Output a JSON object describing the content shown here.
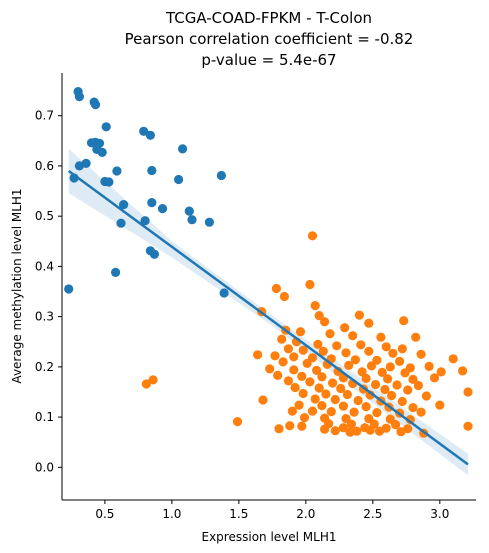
{
  "chart_data": {
    "type": "scatter",
    "title_lines": [
      "TCGA-COAD-FPKM - T-Colon",
      "Pearson correlation coefficient = -0.82",
      "p-value = 5.4e-67"
    ],
    "xlabel": "Expression level MLH1",
    "ylabel": "Average methylation level MLH1",
    "xlim": [
      0.18,
      3.27
    ],
    "ylim": [
      -0.065,
      0.785
    ],
    "xticks": [
      0.5,
      1.0,
      1.5,
      2.0,
      2.5,
      3.0
    ],
    "xtick_labels": [
      "0.5",
      "1.0",
      "1.5",
      "2.0",
      "2.5",
      "3.0"
    ],
    "yticks": [
      0.0,
      0.1,
      0.2,
      0.3,
      0.4,
      0.5,
      0.6,
      0.7
    ],
    "ytick_labels": [
      "0.0",
      "0.1",
      "0.2",
      "0.3",
      "0.4",
      "0.5",
      "0.6",
      "0.7"
    ],
    "grid": false,
    "series": [
      {
        "color": "#1f77b4",
        "points": [
          [
            0.3,
            0.748
          ],
          [
            0.31,
            0.738
          ],
          [
            0.42,
            0.727
          ],
          [
            0.43,
            0.722
          ],
          [
            0.51,
            0.678
          ],
          [
            0.4,
            0.646
          ],
          [
            0.43,
            0.647
          ],
          [
            0.46,
            0.645
          ],
          [
            0.44,
            0.633
          ],
          [
            0.48,
            0.627
          ],
          [
            0.31,
            0.6
          ],
          [
            0.36,
            0.605
          ],
          [
            0.27,
            0.576
          ],
          [
            0.5,
            0.569
          ],
          [
            0.53,
            0.568
          ],
          [
            0.59,
            0.59
          ],
          [
            0.79,
            0.669
          ],
          [
            0.84,
            0.661
          ],
          [
            0.85,
            0.591
          ],
          [
            1.08,
            0.634
          ],
          [
            1.05,
            0.573
          ],
          [
            1.37,
            0.581
          ],
          [
            0.64,
            0.523
          ],
          [
            0.85,
            0.527
          ],
          [
            0.93,
            0.515
          ],
          [
            0.8,
            0.491
          ],
          [
            0.62,
            0.486
          ],
          [
            1.13,
            0.51
          ],
          [
            1.15,
            0.493
          ],
          [
            1.28,
            0.488
          ],
          [
            0.84,
            0.431
          ],
          [
            0.87,
            0.424
          ],
          [
            0.58,
            0.388
          ],
          [
            0.23,
            0.355
          ],
          [
            1.39,
            0.347
          ]
        ]
      },
      {
        "color": "#ff7f0e",
        "points": [
          [
            2.05,
            0.461
          ],
          [
            2.03,
            0.364
          ],
          [
            1.78,
            0.356
          ],
          [
            1.84,
            0.34
          ],
          [
            2.07,
            0.322
          ],
          [
            1.67,
            0.31
          ],
          [
            2.1,
            0.302
          ],
          [
            2.4,
            0.303
          ],
          [
            2.14,
            0.29
          ],
          [
            2.29,
            0.278
          ],
          [
            2.47,
            0.287
          ],
          [
            2.73,
            0.292
          ],
          [
            1.85,
            0.273
          ],
          [
            1.96,
            0.27
          ],
          [
            2.18,
            0.266
          ],
          [
            2.35,
            0.262
          ],
          [
            2.56,
            0.259
          ],
          [
            2.82,
            0.259
          ],
          [
            1.82,
            0.255
          ],
          [
            1.93,
            0.25
          ],
          [
            2.09,
            0.245
          ],
          [
            2.23,
            0.242
          ],
          [
            2.41,
            0.244
          ],
          [
            2.6,
            0.24
          ],
          [
            2.72,
            0.236
          ],
          [
            1.87,
            0.236
          ],
          [
            1.98,
            0.233
          ],
          [
            2.13,
            0.231
          ],
          [
            2.3,
            0.228
          ],
          [
            2.47,
            0.231
          ],
          [
            2.65,
            0.227
          ],
          [
            2.86,
            0.225
          ],
          [
            1.64,
            0.224
          ],
          [
            1.77,
            0.222
          ],
          [
            1.91,
            0.22
          ],
          [
            2.05,
            0.218
          ],
          [
            2.19,
            0.216
          ],
          [
            2.37,
            0.214
          ],
          [
            2.53,
            0.213
          ],
          [
            2.7,
            0.211
          ],
          [
            3.1,
            0.216
          ],
          [
            1.83,
            0.21
          ],
          [
            2.01,
            0.207
          ],
          [
            2.16,
            0.205
          ],
          [
            2.32,
            0.203
          ],
          [
            2.49,
            0.202
          ],
          [
            2.63,
            0.2
          ],
          [
            2.78,
            0.198
          ],
          [
            2.92,
            0.201
          ],
          [
            1.73,
            0.196
          ],
          [
            1.91,
            0.194
          ],
          [
            2.08,
            0.193
          ],
          [
            2.24,
            0.191
          ],
          [
            2.42,
            0.19
          ],
          [
            2.57,
            0.189
          ],
          [
            2.74,
            0.188
          ],
          [
            3.01,
            0.19
          ],
          [
            3.17,
            0.192
          ],
          [
            1.79,
            0.183
          ],
          [
            1.97,
            0.181
          ],
          [
            2.12,
            0.18
          ],
          [
            2.28,
            0.178
          ],
          [
            2.45,
            0.177
          ],
          [
            2.61,
            0.176
          ],
          [
            2.8,
            0.175
          ],
          [
            2.96,
            0.178
          ],
          [
            0.81,
            0.166
          ],
          [
            0.86,
            0.174
          ],
          [
            1.87,
            0.172
          ],
          [
            2.03,
            0.17
          ],
          [
            2.2,
            0.168
          ],
          [
            2.35,
            0.167
          ],
          [
            2.52,
            0.165
          ],
          [
            2.68,
            0.164
          ],
          [
            2.84,
            0.163
          ],
          [
            1.92,
            0.159
          ],
          [
            2.1,
            0.158
          ],
          [
            2.26,
            0.157
          ],
          [
            2.43,
            0.156
          ],
          [
            2.59,
            0.155
          ],
          [
            2.76,
            0.154
          ],
          [
            3.21,
            0.15
          ],
          [
            1.98,
            0.147
          ],
          [
            2.15,
            0.146
          ],
          [
            2.31,
            0.145
          ],
          [
            2.48,
            0.144
          ],
          [
            2.64,
            0.143
          ],
          [
            2.9,
            0.142
          ],
          [
            1.68,
            0.134
          ],
          [
            2.07,
            0.136
          ],
          [
            2.22,
            0.135
          ],
          [
            2.39,
            0.133
          ],
          [
            2.56,
            0.132
          ],
          [
            2.72,
            0.131
          ],
          [
            1.95,
            0.124
          ],
          [
            2.12,
            0.123
          ],
          [
            2.28,
            0.122
          ],
          [
            2.45,
            0.121
          ],
          [
            2.62,
            0.12
          ],
          [
            2.8,
            0.119
          ],
          [
            3.0,
            0.124
          ],
          [
            1.9,
            0.112
          ],
          [
            2.05,
            0.112
          ],
          [
            2.19,
            0.111
          ],
          [
            2.36,
            0.11
          ],
          [
            2.53,
            0.109
          ],
          [
            2.7,
            0.108
          ],
          [
            2.86,
            0.11
          ],
          [
            1.99,
            0.099
          ],
          [
            2.14,
            0.098
          ],
          [
            2.3,
            0.097
          ],
          [
            2.47,
            0.097
          ],
          [
            2.63,
            0.096
          ],
          [
            2.78,
            0.095
          ],
          [
            2.17,
            0.087
          ],
          [
            2.34,
            0.086
          ],
          [
            2.51,
            0.086
          ],
          [
            2.67,
            0.085
          ],
          [
            1.49,
            0.091
          ],
          [
            1.88,
            0.083
          ],
          [
            1.97,
            0.082
          ],
          [
            2.28,
            0.079
          ],
          [
            2.44,
            0.079
          ],
          [
            2.6,
            0.078
          ],
          [
            2.76,
            0.077
          ],
          [
            1.8,
            0.077
          ],
          [
            2.22,
            0.073
          ],
          [
            2.38,
            0.072
          ],
          [
            2.55,
            0.072
          ],
          [
            2.71,
            0.071
          ],
          [
            2.88,
            0.068
          ],
          [
            3.21,
            0.082
          ],
          [
            2.33,
            0.07
          ],
          [
            2.48,
            0.074
          ],
          [
            2.14,
            0.076
          ]
        ]
      }
    ],
    "regression": {
      "color": "#1f77b4",
      "line": [
        [
          0.23,
          0.59
        ],
        [
          3.21,
          0.006
        ]
      ],
      "ci_band": {
        "color": "#1f77b4",
        "upper": [
          [
            0.23,
            0.634
          ],
          [
            1.0,
            0.45
          ],
          [
            1.75,
            0.302
          ],
          [
            2.5,
            0.16
          ],
          [
            3.21,
            0.027
          ]
        ],
        "lower": [
          [
            0.23,
            0.546
          ],
          [
            1.0,
            0.418
          ],
          [
            1.75,
            0.282
          ],
          [
            2.5,
            0.128
          ],
          [
            3.21,
            -0.016
          ]
        ]
      }
    }
  }
}
